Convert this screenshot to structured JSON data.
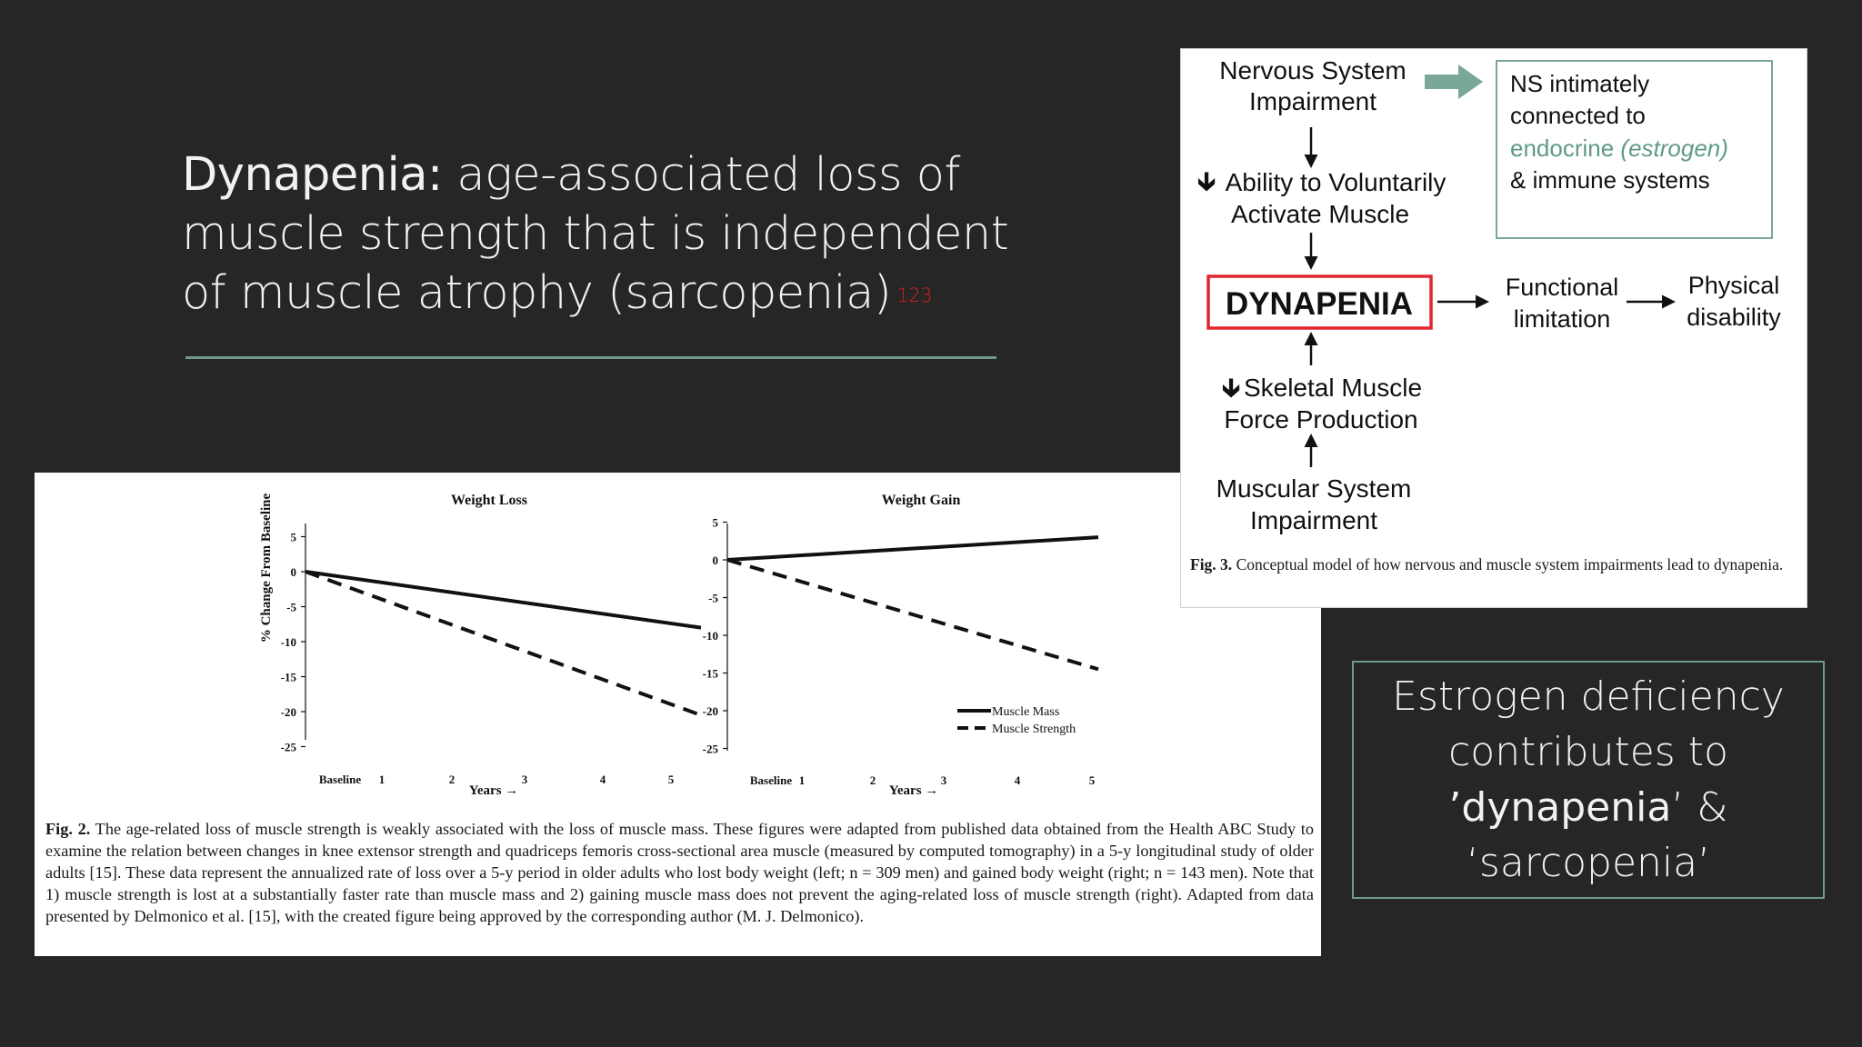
{
  "slide": {
    "title_term": "Dynapenia:",
    "title_rest": " age-associated loss of muscle strength that is independent of muscle atrophy (sarcopenia)",
    "title_ref": "123",
    "callout": {
      "line1": "Estrogen deficiency",
      "line2": "contributes to",
      "term1": "’dynapenia",
      "amp": "’ &",
      "term2": "‘sarcopenia’"
    }
  },
  "fig2": {
    "caption_label": "Fig. 2.",
    "caption_text": "The age-related loss of muscle strength is weakly associated with the loss of muscle mass. These figures were adapted from published data obtained from the Health ABC Study to examine the relation between changes in knee extensor strength and quadriceps femoris cross-sectional area muscle (measured by computed tomography) in a 5-y longitudinal study of older adults [15]. These data represent the annualized rate of loss over a 5-y period in older adults who lost body weight (left; n = 309 men) and gained body weight (right; n = 143 men). Note that 1) muscle strength is lost at a substantially faster rate than muscle mass and 2) gaining muscle mass does not prevent the aging-related loss of muscle strength (right). Adapted from data presented by Delmonico et al. [15], with the created figure being approved by the corresponding author (M. J. Delmonico)."
  },
  "chart_data": [
    {
      "type": "line",
      "title": "Weight Loss",
      "ylabel": "% Change From Baseline",
      "xlabel": "Years →",
      "x": [
        0,
        5
      ],
      "xticks": [
        "Baseline",
        "1",
        "2",
        "3",
        "4",
        "5"
      ],
      "ylim": [
        -25,
        5
      ],
      "yticks": [
        "5",
        "0",
        "-5",
        "-10",
        "-15",
        "-20",
        "-25"
      ],
      "series": [
        {
          "name": "Muscle Mass",
          "style": "solid",
          "values": [
            0,
            -8
          ]
        },
        {
          "name": "Muscle Strength",
          "style": "dashed",
          "values": [
            0,
            -20.5
          ]
        }
      ]
    },
    {
      "type": "line",
      "title": "Weight Gain",
      "ylabel": "",
      "xlabel": "Years →",
      "x": [
        0,
        5
      ],
      "xticks": [
        "Baseline",
        "1",
        "2",
        "3",
        "4",
        "5"
      ],
      "ylim": [
        -25,
        5
      ],
      "yticks": [
        "5",
        "0",
        "-5",
        "-10",
        "-15",
        "-20",
        "-25"
      ],
      "legend": "bottom-right",
      "series": [
        {
          "name": "Muscle Mass",
          "style": "solid",
          "values": [
            0,
            3
          ]
        },
        {
          "name": "Muscle Strength",
          "style": "dashed",
          "values": [
            0,
            -14.5
          ]
        }
      ]
    }
  ],
  "fig3": {
    "ns_line1": "Nervous System",
    "ns_line2": "Impairment",
    "note_line1": "NS intimately",
    "note_line2": "connected to",
    "note_line3a": "endocrine ",
    "note_line3b": "(estrogen)",
    "note_line4": "& immune systems",
    "ability_line1": "Ability to Voluntarily",
    "ability_line2": "Activate Muscle",
    "dynapenia": "DYNAPENIA",
    "func_line1": "Functional",
    "func_line2": "limitation",
    "phys_line1": "Physical",
    "phys_line2": "disability",
    "skel_line1": "Skeletal Muscle",
    "skel_line2": "Force Production",
    "musc_line1": "Muscular System",
    "musc_line2": "Impairment",
    "caption_label": "Fig. 3.",
    "caption_text": "Conceptual model of how nervous and muscle system impairments lead to dynapenia.",
    "colors": {
      "dynapenia_red": "#e0262e",
      "note_teal": "#5f9a86"
    }
  }
}
